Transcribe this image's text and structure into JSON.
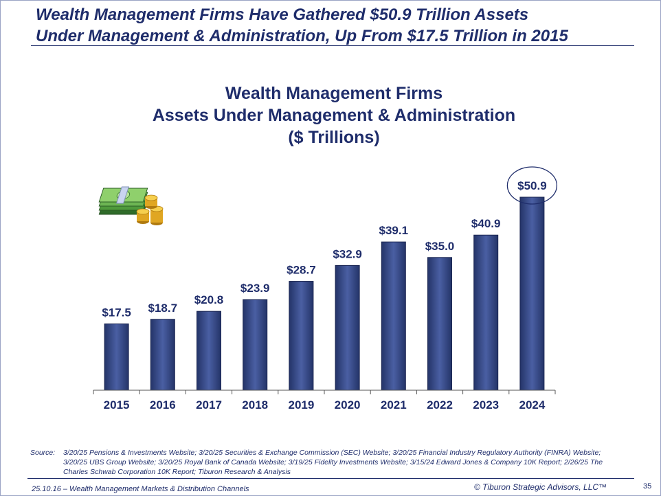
{
  "headline": {
    "line1": "Wealth Management Firms Have Gathered $50.9 Trillion Assets",
    "line2": "Under Management & Administration, Up From $17.5 Trillion in 2015"
  },
  "chart_data": {
    "type": "bar",
    "title_lines": [
      "Wealth Management Firms",
      "Assets Under Management & Administration",
      "($ Trillions)"
    ],
    "categories": [
      "2015",
      "2016",
      "2017",
      "2018",
      "2019",
      "2020",
      "2021",
      "2022",
      "2023",
      "2024"
    ],
    "values": [
      17.5,
      18.7,
      20.8,
      23.9,
      28.7,
      32.9,
      39.1,
      35.0,
      40.9,
      50.9
    ],
    "data_labels": [
      "$17.5",
      "$18.7",
      "$20.8",
      "$23.9",
      "$28.7",
      "$32.9",
      "$39.1",
      "$35.0",
      "$40.9",
      "$50.9"
    ],
    "highlighted_category": "2024",
    "grid": false,
    "legend": "none",
    "bar_color": "#2b3d7a"
  },
  "icon": {
    "name": "money-stack-icon"
  },
  "source": {
    "label": "Source:",
    "text": "3/20/25 Pensions & Investments Website; 3/20/25 Securities & Exchange Commission (SEC) Website; 3/20/25 Financial Industry Regulatory Authority (FINRA) Website; 3/20/25 UBS Group Website; 3/20/25 Royal Bank of Canada Website; 3/19/25 Fidelity Investments Website; 3/15/24 Edward Jones & Company 10K Report; 2/26/25 The Charles Schwab Corporation 10K Report; Tiburon Research & Analysis"
  },
  "footer": {
    "left": "25.10.16 – Wealth Management Markets & Distribution Channels",
    "right": "© Tiburon Strategic Advisors, LLC™",
    "page": "35"
  }
}
